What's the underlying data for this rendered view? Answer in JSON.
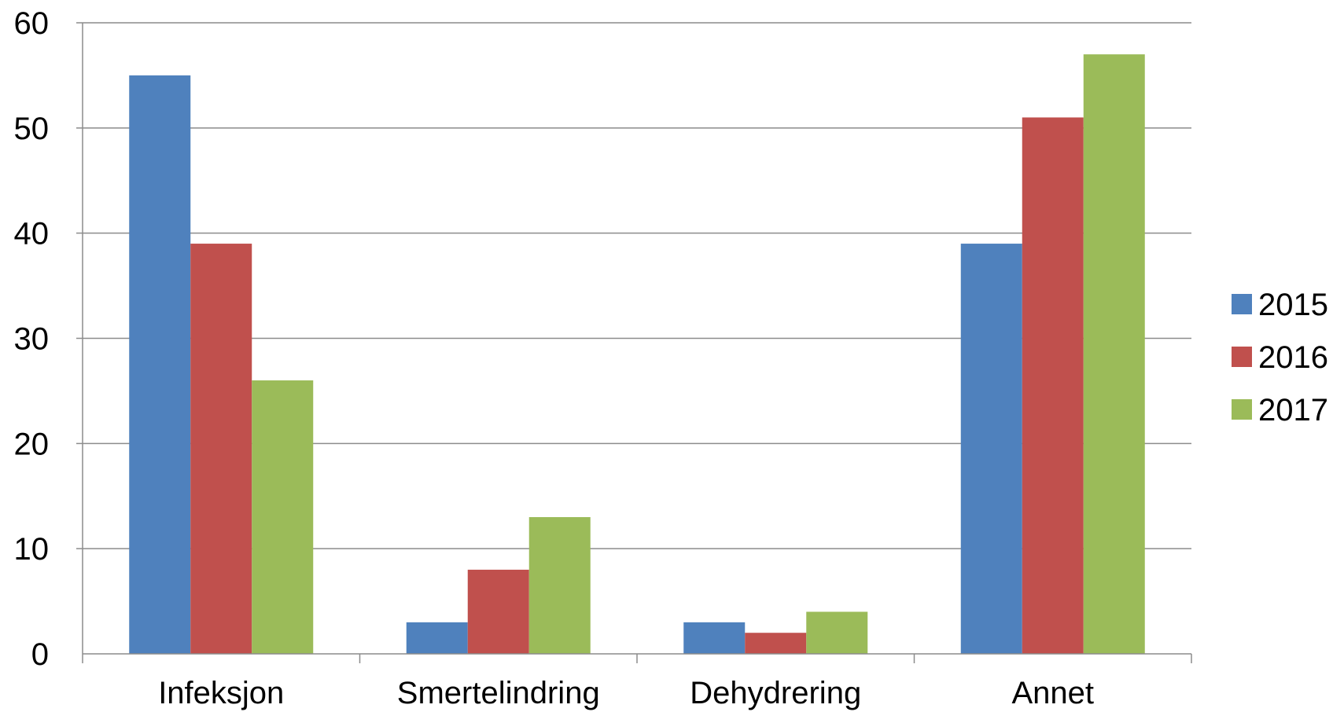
{
  "chart_data": {
    "type": "bar",
    "categories": [
      "Infeksjon",
      "Smertelindring",
      "Dehydrering",
      "Annet"
    ],
    "series": [
      {
        "name": "2015",
        "color": "#4F81BD",
        "values": [
          55,
          3,
          3,
          39
        ]
      },
      {
        "name": "2016",
        "color": "#C0504D",
        "values": [
          39,
          8,
          2,
          51
        ]
      },
      {
        "name": "2017",
        "color": "#9BBB59",
        "values": [
          26,
          13,
          4,
          57
        ]
      }
    ],
    "yticks": [
      "0",
      "10",
      "20",
      "30",
      "40",
      "50",
      "60"
    ],
    "ylim": [
      0,
      60
    ],
    "grid": true,
    "legend_position": "right",
    "title": "",
    "xlabel": "",
    "ylabel": ""
  }
}
